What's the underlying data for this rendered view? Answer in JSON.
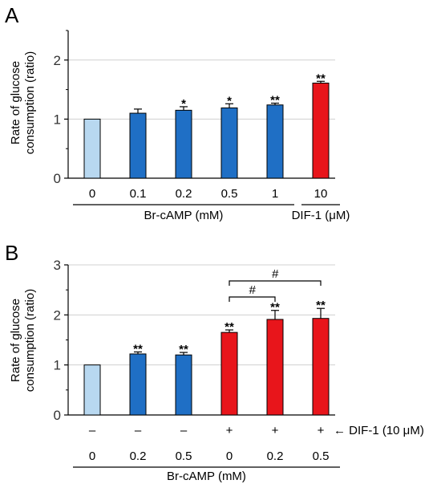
{
  "chart_data": [
    {
      "panel": "A",
      "type": "bar",
      "ylabel": [
        "Rate of glucose",
        "consumption (ratio)"
      ],
      "ylim": [
        0,
        2.5
      ],
      "yticks": [
        "0",
        "1",
        "2"
      ],
      "grid": true,
      "categories": [
        "0",
        "0.1",
        "0.2",
        "0.5",
        "1",
        "10"
      ],
      "values": [
        1.0,
        1.1,
        1.15,
        1.19,
        1.24,
        1.61
      ],
      "errors": [
        0,
        0.07,
        0.06,
        0.07,
        0.03,
        0.03
      ],
      "significance": [
        "",
        "",
        "*",
        "*",
        "**",
        "**"
      ],
      "colors": [
        "#b8d8f0",
        "#1f6fc5",
        "#1f6fc5",
        "#1f6fc5",
        "#1f6fc5",
        "#e8151b"
      ],
      "groups": [
        {
          "label": "Br-cAMP (mM)",
          "from": 0,
          "to": 4
        },
        {
          "label": "DIF-1 (μM)",
          "from": 5,
          "to": 5
        }
      ]
    },
    {
      "panel": "B",
      "type": "bar",
      "ylabel": [
        "Rate of glucose",
        "consumption (ratio)"
      ],
      "ylim": [
        0,
        3
      ],
      "yticks": [
        "0",
        "1",
        "2",
        "3"
      ],
      "grid": true,
      "dif_row": [
        "–",
        "–",
        "–",
        "+",
        "+",
        "+"
      ],
      "dif_label": "← DIF-1 (10 μM)",
      "categories": [
        "0",
        "0.2",
        "0.5",
        "0",
        "0.2",
        "0.5"
      ],
      "values": [
        1.0,
        1.22,
        1.2,
        1.65,
        1.91,
        1.93
      ],
      "errors": [
        0,
        0.04,
        0.05,
        0.05,
        0.18,
        0.2
      ],
      "significance": [
        "",
        "**",
        "**",
        "**",
        "**",
        "**"
      ],
      "colors": [
        "#b8d8f0",
        "#1f6fc5",
        "#1f6fc5",
        "#e8151b",
        "#e8151b",
        "#e8151b"
      ],
      "comparisons": [
        {
          "from": 3,
          "to": 4,
          "label": "#"
        },
        {
          "from": 3,
          "to": 5,
          "label": "#"
        }
      ],
      "groups": [
        {
          "label": "Br-cAMP (mM)",
          "from": 0,
          "to": 5
        }
      ]
    }
  ]
}
